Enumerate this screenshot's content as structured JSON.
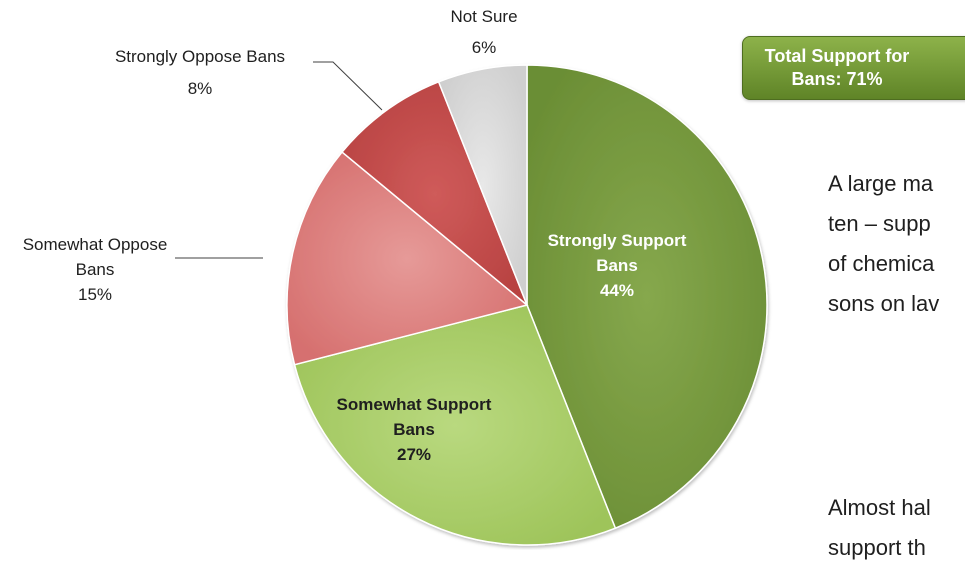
{
  "chart_data": {
    "type": "pie",
    "slices": [
      {
        "label_lines": [
          "Strongly Support",
          "Bans"
        ],
        "value": 44,
        "value_label": "44%",
        "color": "#6b8e35",
        "color_light": "#86a84d"
      },
      {
        "label_lines": [
          "Somewhat Support",
          "Bans"
        ],
        "value": 27,
        "value_label": "27%",
        "color": "#9ec45a",
        "color_light": "#b9d97f"
      },
      {
        "label_lines": [
          "Somewhat Oppose",
          "Bans"
        ],
        "value": 15,
        "value_label": "15%",
        "color": "#d6706f",
        "color_light": "#e69a98"
      },
      {
        "label_lines": [
          "Strongly Oppose Bans"
        ],
        "value": 8,
        "value_label": "8%",
        "color": "#b84241",
        "color_light": "#cf5b5a"
      },
      {
        "label_lines": [
          "Not Sure"
        ],
        "value": 6,
        "value_label": "6%",
        "color": "#cfcfcf",
        "color_light": "#e8e8e8"
      }
    ],
    "start_angle_deg": 0,
    "direction": "clockwise"
  },
  "badge": {
    "line1": "Total Support for",
    "line2": "Bans: 71%"
  },
  "body_text": {
    "para1": [
      "A large ma",
      "ten – supp",
      "of chemica",
      "sons on lav"
    ],
    "para2": [
      "Almost hal",
      "support th"
    ]
  }
}
